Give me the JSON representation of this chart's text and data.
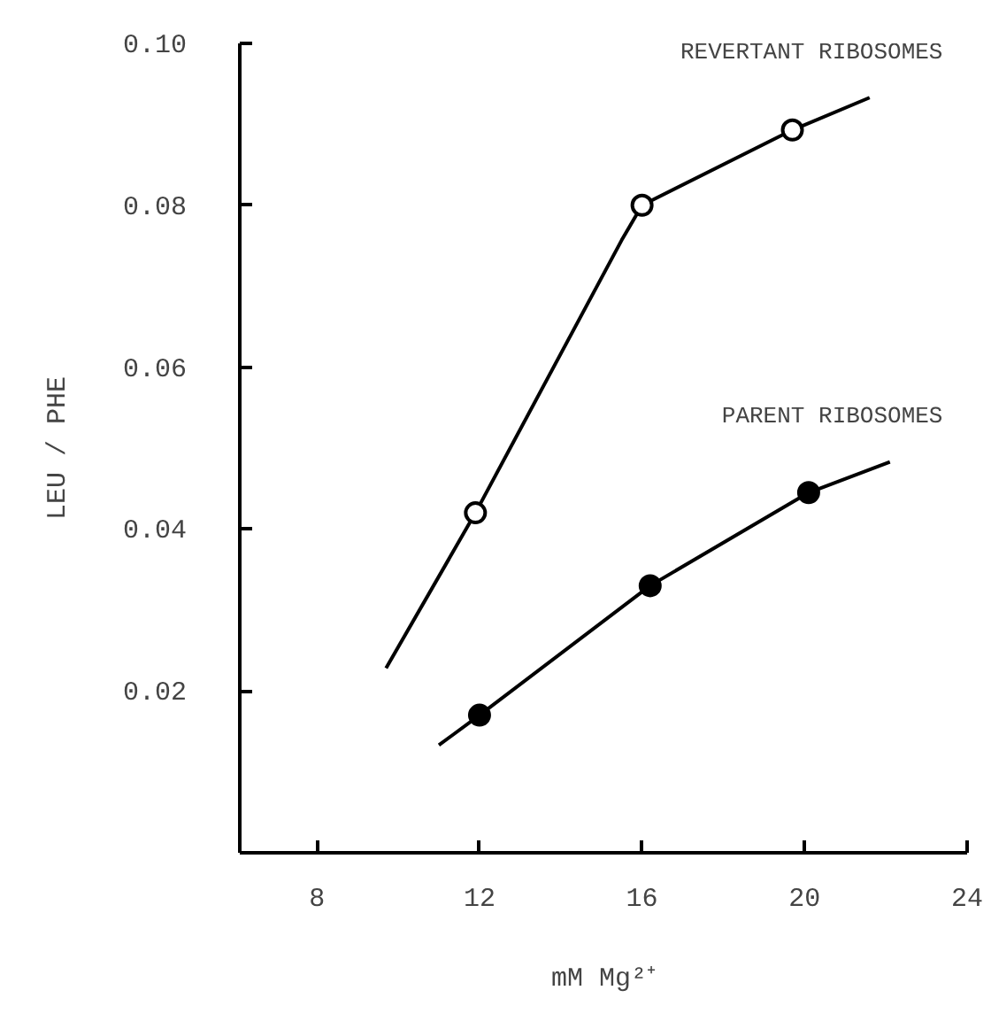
{
  "chart_data": {
    "type": "line",
    "xlabel": "mM Mg²⁺",
    "ylabel": "LEU / PHE",
    "xlim": [
      6.1,
      24
    ],
    "ylim": [
      0,
      0.1
    ],
    "xticks": [
      8,
      12,
      16,
      20,
      24
    ],
    "yticks": [
      0.02,
      0.04,
      0.06,
      {
        "value": 0.08,
        "label": "0.08"
      },
      {
        "value": 0.1,
        "label": "0.10"
      }
    ],
    "grid": false,
    "line_style": "solid",
    "series": [
      {
        "name": "REVERTANT RIBOSOMES",
        "color": "#000000",
        "marker": "none",
        "x": [
          9.7,
          11.9,
          15.5,
          16.0,
          19.7,
          21.6
        ],
        "values": [
          0.0228,
          0.042,
          0.0757,
          0.08,
          0.0893,
          0.0933
        ]
      },
      {
        "type": "scatter",
        "color": "#ffffff",
        "marker": "circle",
        "x": [
          11.9,
          16.0,
          19.7
        ],
        "values": [
          0.042,
          0.08,
          0.0893
        ]
      },
      {
        "name": "PARENT RIBOSOMES",
        "color": "#000000",
        "marker": "none",
        "x": [
          11.0,
          12.0,
          16.2,
          20.1,
          22.1
        ],
        "values": [
          0.0133,
          0.017,
          0.033,
          0.0445,
          0.0483
        ]
      },
      {
        "type": "scatter",
        "color": "#000000",
        "marker": "circle",
        "x": [
          12.0,
          16.2,
          20.1
        ],
        "values": [
          0.017,
          0.033,
          0.0445
        ]
      }
    ]
  }
}
